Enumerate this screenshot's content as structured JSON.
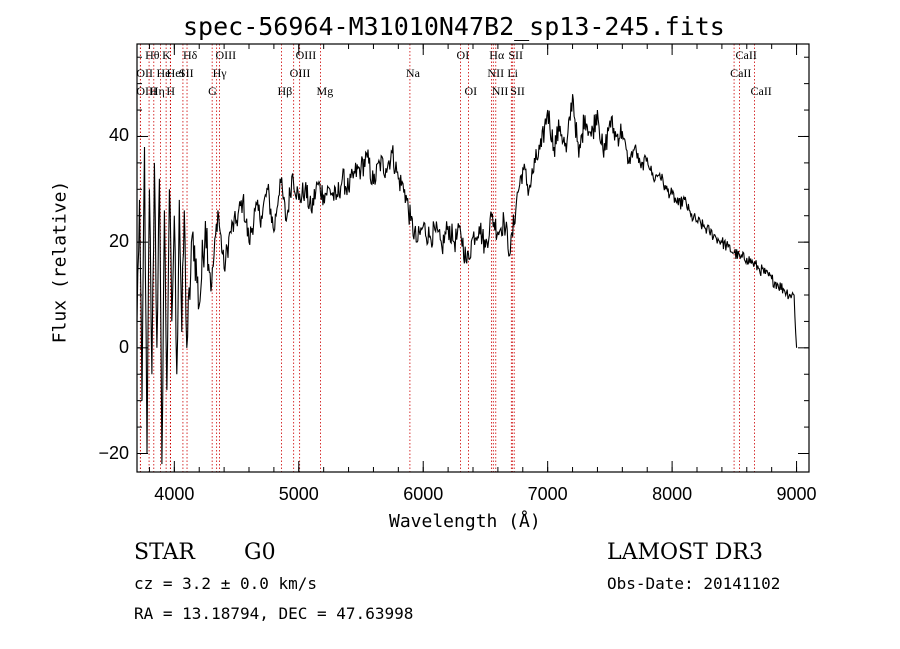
{
  "title": "spec-56964-M31010N47B2_sp13-245.fits",
  "info": {
    "class": "STAR",
    "subclass": "G0",
    "survey": "LAMOST DR3",
    "cz": "cz = 3.2 ± 0.0 km/s",
    "obs_date": "Obs-Date: 20141102",
    "coords": "RA =  13.18794, DEC =  47.63998"
  },
  "colors": {
    "spectrum": "#000000",
    "lines": "#cc0000",
    "axes": "#000000"
  },
  "chart_data": {
    "type": "line",
    "title": "spec-56964-M31010N47B2_sp13-245.fits",
    "xlabel": "Wavelength (Å)",
    "ylabel": "Flux (relative)",
    "xlim": [
      3700,
      9100
    ],
    "ylim": [
      -23.5,
      57.5
    ],
    "xticks": [
      4000,
      5000,
      6000,
      7000,
      8000,
      9000
    ],
    "yticks": [
      -20,
      0,
      20,
      40
    ],
    "x_minor_step": 200,
    "y_minor_step": 5,
    "series": [
      {
        "name": "flux",
        "x": [
          3700,
          3720,
          3740,
          3760,
          3780,
          3800,
          3820,
          3840,
          3860,
          3880,
          3900,
          3920,
          3940,
          3960,
          3980,
          4000,
          4020,
          4040,
          4060,
          4080,
          4100,
          4150,
          4200,
          4250,
          4300,
          4350,
          4400,
          4450,
          4500,
          4550,
          4600,
          4650,
          4700,
          4750,
          4800,
          4850,
          4900,
          4950,
          5000,
          5050,
          5100,
          5150,
          5200,
          5250,
          5300,
          5350,
          5400,
          5450,
          5500,
          5550,
          5600,
          5650,
          5700,
          5750,
          5800,
          5850,
          5900,
          5950,
          6000,
          6050,
          6100,
          6150,
          6200,
          6250,
          6300,
          6350,
          6400,
          6450,
          6500,
          6550,
          6600,
          6650,
          6700,
          6750,
          6800,
          6850,
          6900,
          6950,
          7000,
          7050,
          7100,
          7150,
          7200,
          7250,
          7300,
          7350,
          7400,
          7450,
          7500,
          7550,
          7600,
          7650,
          7700,
          7750,
          7800,
          7850,
          7900,
          7950,
          8000,
          8050,
          8100,
          8150,
          8200,
          8250,
          8300,
          8350,
          8400,
          8450,
          8500,
          8550,
          8600,
          8650,
          8700,
          8750,
          8800,
          8850,
          8900,
          8950,
          8980,
          9000
        ],
        "y": [
          5,
          28,
          -10,
          38,
          -20,
          30,
          -5,
          35,
          0,
          32,
          -22,
          26,
          -8,
          30,
          5,
          25,
          -5,
          28,
          3,
          26,
          0,
          22,
          8,
          24,
          12,
          26,
          15,
          22,
          24,
          28,
          20,
          26,
          25,
          30,
          22,
          32,
          24,
          33,
          28,
          30,
          26,
          31,
          29,
          30,
          28,
          32,
          30,
          33,
          34,
          36,
          31,
          35,
          34,
          37,
          32,
          30,
          24,
          20,
          23,
          21,
          22,
          19,
          23,
          20,
          22,
          16,
          21,
          23,
          19,
          25,
          22,
          24,
          18,
          28,
          34,
          30,
          35,
          38,
          45,
          38,
          42,
          37,
          48,
          36,
          44,
          40,
          45,
          36,
          43,
          40,
          41,
          35,
          38,
          34,
          36,
          32,
          33,
          30,
          29,
          27,
          28,
          25,
          24,
          23,
          22,
          21,
          20,
          19,
          18,
          17,
          17,
          16,
          15,
          14,
          13,
          12,
          11,
          10,
          10,
          0
        ]
      }
    ],
    "lines": [
      {
        "name": "Hθ",
        "wave": 3797,
        "row": 1
      },
      {
        "name": "OII",
        "wave": 3727,
        "row": 2
      },
      {
        "name": "OIII",
        "wave": 3727,
        "row": 3
      },
      {
        "name": "He",
        "wave": 3889,
        "row": 2
      },
      {
        "name": "Hη",
        "wave": 3835,
        "row": 3
      },
      {
        "name": "K",
        "wave": 3934,
        "row": 1
      },
      {
        "name": "HeI",
        "wave": 3970,
        "row": 2
      },
      {
        "name": "H",
        "wave": 3968,
        "row": 3
      },
      {
        "name": "Hδ",
        "wave": 4102,
        "row": 1
      },
      {
        "name": "SII",
        "wave": 4069,
        "row": 2
      },
      {
        "name": "OIII",
        "wave": 4363,
        "row": 1
      },
      {
        "name": "Hγ",
        "wave": 4340,
        "row": 2
      },
      {
        "name": "G",
        "wave": 4304,
        "row": 3
      },
      {
        "name": "Hβ",
        "wave": 4861,
        "row": 3
      },
      {
        "name": "OIII",
        "wave": 4959,
        "row": 2
      },
      {
        "name": "OIII",
        "wave": 5007,
        "row": 1
      },
      {
        "name": "Mg",
        "wave": 5175,
        "row": 3
      },
      {
        "name": "Na",
        "wave": 5893,
        "row": 2
      },
      {
        "name": "OI",
        "wave": 6300,
        "row": 1
      },
      {
        "name": "OI",
        "wave": 6364,
        "row": 3
      },
      {
        "name": "Hα",
        "wave": 6563,
        "row": 1
      },
      {
        "name": "NII",
        "wave": 6548,
        "row": 2
      },
      {
        "name": "NII",
        "wave": 6583,
        "row": 3
      },
      {
        "name": "SII",
        "wave": 6716,
        "row": 1
      },
      {
        "name": "Li",
        "wave": 6708,
        "row": 2
      },
      {
        "name": "SII",
        "wave": 6731,
        "row": 3
      },
      {
        "name": "CaII",
        "wave": 8542,
        "row": 1
      },
      {
        "name": "CaII",
        "wave": 8498,
        "row": 2
      },
      {
        "name": "CaII",
        "wave": 8662,
        "row": 3
      }
    ]
  }
}
